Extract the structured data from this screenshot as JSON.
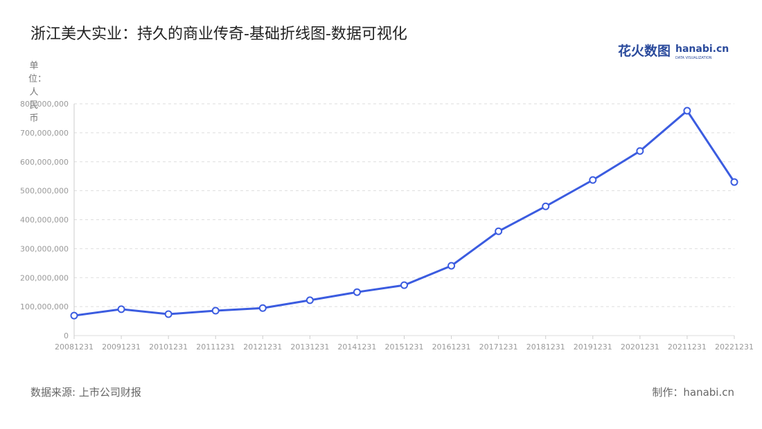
{
  "chart_data": {
    "type": "line",
    "title": "浙江美大实业：持久的商业传奇-基础折线图-数据可视化",
    "y_label": "单位：人民币",
    "categories": [
      "20081231",
      "20091231",
      "20101231",
      "20111231",
      "20121231",
      "20131231",
      "20141231",
      "20151231",
      "20161231",
      "20171231",
      "20181231",
      "20191231",
      "20201231",
      "20211231",
      "20221231"
    ],
    "series": [
      {
        "name": "浙江美大",
        "color": "#3b5ce0",
        "values": [
          69000000,
          91000000,
          74000000,
          86000000,
          95000000,
          122000000,
          150000000,
          174000000,
          241000000,
          360000000,
          446000000,
          537000000,
          637000000,
          776000000,
          530000000
        ]
      }
    ],
    "ylim": [
      0,
      800000000
    ],
    "yticks": [
      0,
      {
        "value": 100000000,
        "label": "100,000,000"
      },
      {
        "value": 200000000,
        "label": "200,000,000"
      },
      {
        "value": 300000000,
        "label": "300,000,000"
      },
      {
        "value": 400000000,
        "label": "400,000,000"
      },
      {
        "value": 500000000,
        "label": "500,000,000"
      },
      {
        "value": 600000000,
        "label": "600,000,000"
      },
      {
        "value": 700000000,
        "label": "700,000,000"
      },
      {
        "value": 800000000,
        "label": "800,000,000"
      }
    ],
    "grid": true,
    "source": "数据来源: 上市公司财报",
    "credit": "制作：hanabi.cn",
    "logo": {
      "main": "花火数图",
      "brand": "hanabi.cn",
      "tagline": "DATA VISUALIZATION"
    }
  }
}
